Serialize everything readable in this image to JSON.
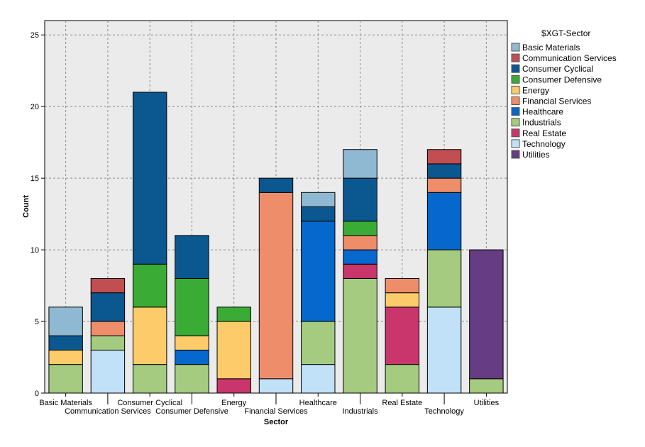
{
  "chart_data": {
    "type": "bar",
    "stacked": true,
    "xlabel": "Sector",
    "ylabel": "Count",
    "ylim": [
      0,
      26
    ],
    "yticks": [
      0,
      5,
      10,
      15,
      20,
      25
    ],
    "grid": true,
    "legend_position": "right",
    "legend_title": "$XGT-Sector",
    "categories": [
      "Basic Materials",
      "Communication Services",
      "Consumer Cyclical",
      "Consumer Defensive",
      "Energy",
      "Financial Services",
      "Healthcare",
      "Industrials",
      "Real Estate",
      "Technology",
      "Utilities"
    ],
    "series": [
      {
        "name": "Basic Materials",
        "color": "#8fb9d2",
        "values": [
          2,
          0,
          0,
          0,
          0,
          0,
          1,
          2,
          0,
          0,
          0
        ]
      },
      {
        "name": "Communication Services",
        "color": "#c14e51",
        "values": [
          0,
          1,
          0,
          0,
          0,
          0,
          0,
          0,
          0,
          1,
          0
        ]
      },
      {
        "name": "Consumer Cyclical",
        "color": "#0b5891",
        "values": [
          1,
          2,
          12,
          3,
          0,
          1,
          1,
          3,
          0,
          1,
          0
        ]
      },
      {
        "name": "Consumer Defensive",
        "color": "#3aab35",
        "values": [
          0,
          0,
          3,
          4,
          1,
          0,
          0,
          1,
          0,
          0,
          0
        ]
      },
      {
        "name": "Energy",
        "color": "#fecb6a",
        "values": [
          1,
          0,
          4,
          1,
          4,
          0,
          0,
          0,
          1,
          0,
          0
        ]
      },
      {
        "name": "Financial Services",
        "color": "#ee8d6a",
        "values": [
          0,
          1,
          0,
          0,
          0,
          13,
          0,
          1,
          1,
          1,
          0
        ]
      },
      {
        "name": "Healthcare",
        "color": "#0667cd",
        "values": [
          0,
          0,
          0,
          1,
          0,
          0,
          7,
          1,
          0,
          4,
          0
        ]
      },
      {
        "name": "Industrials",
        "color": "#a4cb80",
        "values": [
          2,
          1,
          2,
          2,
          0,
          0,
          3,
          8,
          2,
          4,
          1
        ]
      },
      {
        "name": "Real Estate",
        "color": "#c9366b",
        "values": [
          0,
          0,
          0,
          0,
          1,
          0,
          0,
          1,
          4,
          0,
          0
        ]
      },
      {
        "name": "Technology",
        "color": "#c1e1f8",
        "values": [
          0,
          3,
          0,
          0,
          0,
          1,
          2,
          0,
          0,
          6,
          0
        ]
      },
      {
        "name": "Utilities",
        "color": "#663c83",
        "values": [
          0,
          0,
          0,
          0,
          0,
          0,
          0,
          0,
          0,
          0,
          9
        ]
      }
    ],
    "stack_order": [
      "Technology",
      "Industrials",
      "Real Estate",
      "Healthcare",
      "Energy",
      "Financial Services",
      "Consumer Defensive",
      "Consumer Cyclical",
      "Communication Services",
      "Basic Materials",
      "Utilities"
    ],
    "colors": {
      "plot_bg": "#ebebeb",
      "grid": "#8c8c8c",
      "bar_edge": "#000000"
    }
  }
}
